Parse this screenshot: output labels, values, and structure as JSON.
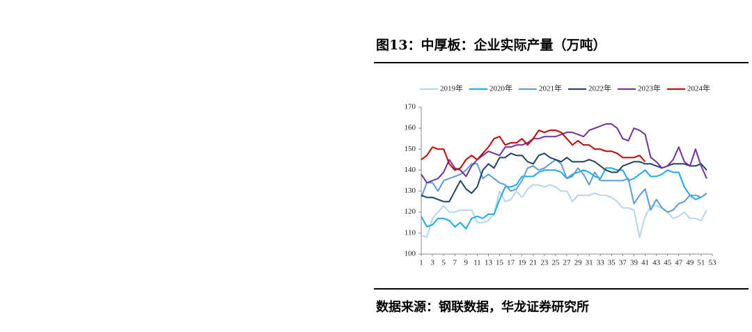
{
  "chart_data": {
    "type": "line",
    "title": "图13：中厚板：企业实际产量（万吨）",
    "source": "数据来源：钢联数据，华龙证券研究所",
    "x": [
      1,
      2,
      3,
      4,
      5,
      6,
      7,
      8,
      9,
      10,
      11,
      12,
      13,
      14,
      15,
      16,
      17,
      18,
      19,
      20,
      21,
      22,
      23,
      24,
      25,
      26,
      27,
      28,
      29,
      30,
      31,
      32,
      33,
      34,
      35,
      36,
      37,
      38,
      39,
      40,
      41,
      42,
      43,
      44,
      45,
      46,
      47,
      48,
      49,
      50,
      51,
      52,
      53
    ],
    "xlim": [
      1,
      53
    ],
    "xticks": [
      1,
      3,
      5,
      7,
      9,
      11,
      13,
      15,
      17,
      19,
      21,
      23,
      25,
      27,
      29,
      31,
      33,
      35,
      37,
      39,
      41,
      43,
      45,
      47,
      49,
      51,
      53
    ],
    "ylim": [
      100,
      170
    ],
    "yticks": [
      100,
      110,
      120,
      130,
      140,
      150,
      160,
      170
    ],
    "grid": false,
    "legend": "top",
    "series": [
      {
        "name": "2019年",
        "color": "#b4d4ec",
        "values": [
          109,
          108,
          117,
          120,
          123,
          120,
          120,
          121,
          121,
          121,
          115,
          115,
          116,
          119,
          130,
          125,
          126,
          130,
          127,
          131,
          133,
          133,
          132,
          133,
          132,
          130,
          130,
          125,
          128,
          128,
          128,
          129,
          128,
          128,
          127,
          125,
          122,
          122,
          121,
          108,
          118,
          123,
          123,
          122,
          120,
          117,
          118,
          120,
          117,
          117,
          116,
          121,
          null
        ]
      },
      {
        "name": "2020年",
        "color": "#1aa9e8",
        "values": [
          118,
          113,
          114,
          117,
          117,
          116,
          113,
          115,
          112,
          117,
          118,
          117,
          119,
          119,
          126,
          132,
          132,
          133,
          137,
          137,
          137,
          139,
          140,
          140,
          140,
          139,
          136,
          138,
          139,
          140,
          139,
          137,
          136,
          141,
          141,
          140,
          140,
          135,
          136,
          138,
          140,
          137,
          137,
          138,
          140,
          139,
          139,
          132,
          128,
          126,
          127,
          129,
          null
        ]
      },
      {
        "name": "2021年",
        "color": "#5b9bd5",
        "values": [
          127,
          134,
          134,
          130,
          135,
          136,
          137,
          138,
          140,
          143,
          143,
          136,
          138,
          136,
          134,
          133,
          130,
          131,
          135,
          141,
          142,
          140,
          141,
          143,
          145,
          143,
          136,
          137,
          141,
          138,
          133,
          139,
          135,
          135,
          135,
          135,
          135,
          136,
          124,
          128,
          131,
          121,
          126,
          122,
          120,
          121,
          124,
          125,
          128,
          128,
          127,
          129,
          null
        ]
      },
      {
        "name": "2022年",
        "color": "#1f3f66",
        "values": [
          128,
          127,
          127,
          126,
          125,
          125,
          130,
          135,
          131,
          129,
          132,
          140,
          143,
          141,
          146,
          146,
          148,
          147,
          147,
          144,
          143,
          147,
          148,
          146,
          145,
          144,
          146,
          144,
          144,
          144,
          145,
          144,
          142,
          140,
          139,
          139,
          142,
          143,
          144,
          144,
          143,
          143,
          142,
          141,
          142,
          143,
          143,
          143,
          142,
          142,
          143,
          140,
          null
        ]
      },
      {
        "name": "2023年",
        "color": "#7030a0",
        "values": [
          138,
          134,
          135,
          136,
          139,
          145,
          141,
          140,
          137,
          142,
          145,
          147,
          149,
          148,
          147,
          151,
          151,
          152,
          152,
          153,
          155,
          155,
          156,
          156,
          156,
          157,
          158,
          158,
          157,
          156,
          159,
          160,
          161,
          162,
          162,
          160,
          155,
          154,
          160,
          159,
          157,
          146,
          144,
          141,
          142,
          145,
          151,
          144,
          142,
          150,
          142,
          136,
          null
        ]
      },
      {
        "name": "2024年",
        "color": "#c00000",
        "values": [
          145,
          147,
          151,
          150,
          150,
          143,
          140,
          141,
          145,
          147,
          145,
          148,
          151,
          155,
          156,
          152,
          153,
          153,
          155,
          152,
          155,
          159,
          158,
          159,
          159,
          158,
          155,
          152,
          154,
          152,
          152,
          150,
          150,
          149,
          149,
          148,
          146,
          146,
          146,
          147,
          144,
          null,
          null,
          null,
          null,
          null,
          null,
          null,
          null,
          null,
          null,
          null,
          null
        ]
      }
    ]
  }
}
